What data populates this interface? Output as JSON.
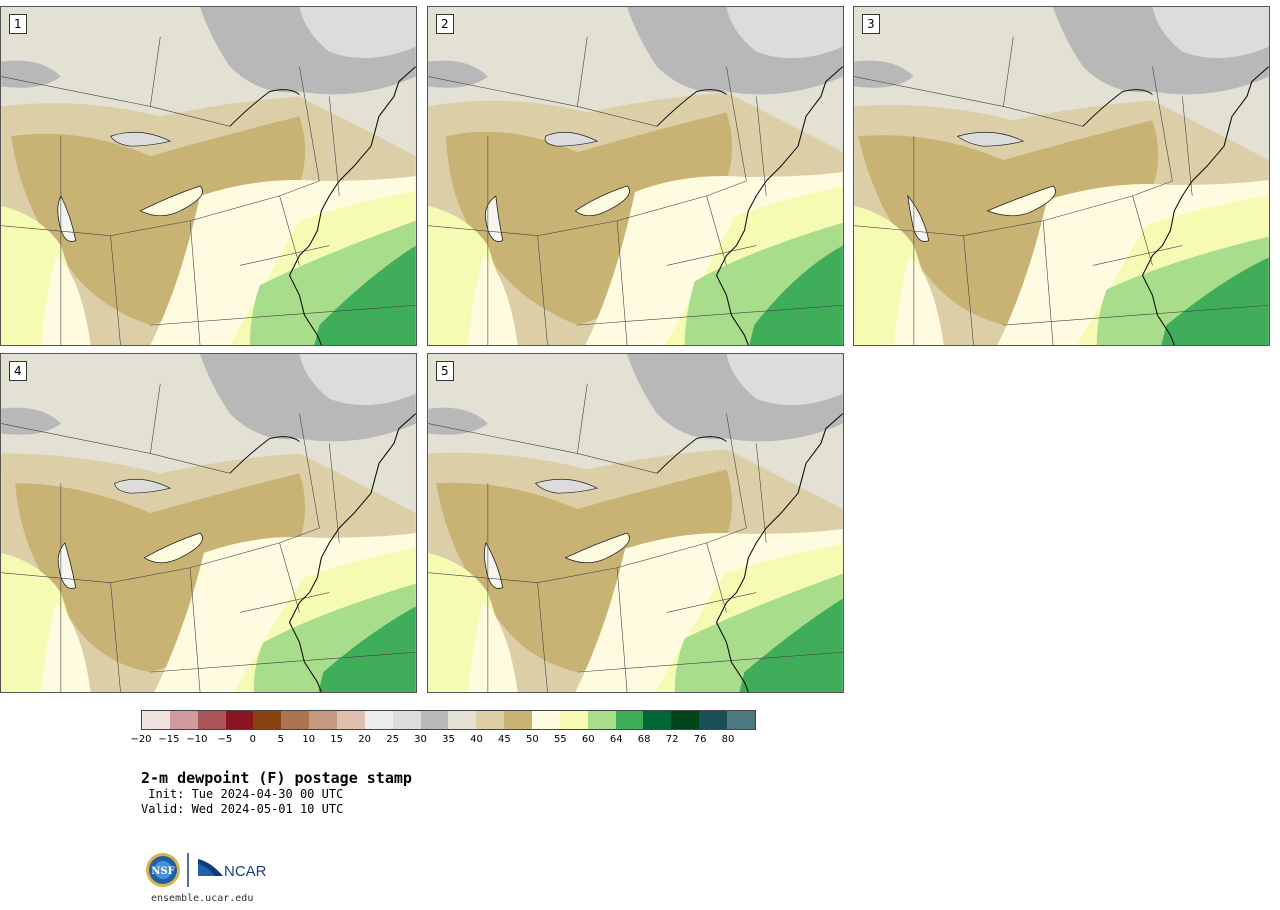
{
  "panels": [
    {
      "label": "1"
    },
    {
      "label": "2"
    },
    {
      "label": "3"
    },
    {
      "label": "4"
    },
    {
      "label": "5"
    }
  ],
  "legend": {
    "colors": [
      "#f2e3e3",
      "#d19a9e",
      "#ab5559",
      "#8a1520",
      "#884211",
      "#ab7350",
      "#c59a80",
      "#dfbfad",
      "#ececec",
      "#dcdcdc",
      "#b8b8b8",
      "#e2e1d4",
      "#dccfa8",
      "#c8b274",
      "#fffbe0",
      "#f6fbb4",
      "#a8dd8c",
      "#40ad5b",
      "#006837",
      "#00441b",
      "#1a4f57",
      "#4d797e"
    ],
    "ticks": [
      "−20",
      "−15",
      "−10",
      "−5",
      "0",
      "5",
      "10",
      "15",
      "20",
      "25",
      "30",
      "35",
      "40",
      "45",
      "50",
      "55",
      "60",
      "64",
      "68",
      "72",
      "76",
      "80"
    ]
  },
  "title": "2-m dewpoint (F) postage stamp",
  "init": " Init: Tue 2024-04-30 00 UTC",
  "valid": "Valid: Wed 2024-05-01 10 UTC",
  "logos": {
    "left": "NSF",
    "right": "NCAR"
  },
  "site": "ensemble.ucar.edu"
}
